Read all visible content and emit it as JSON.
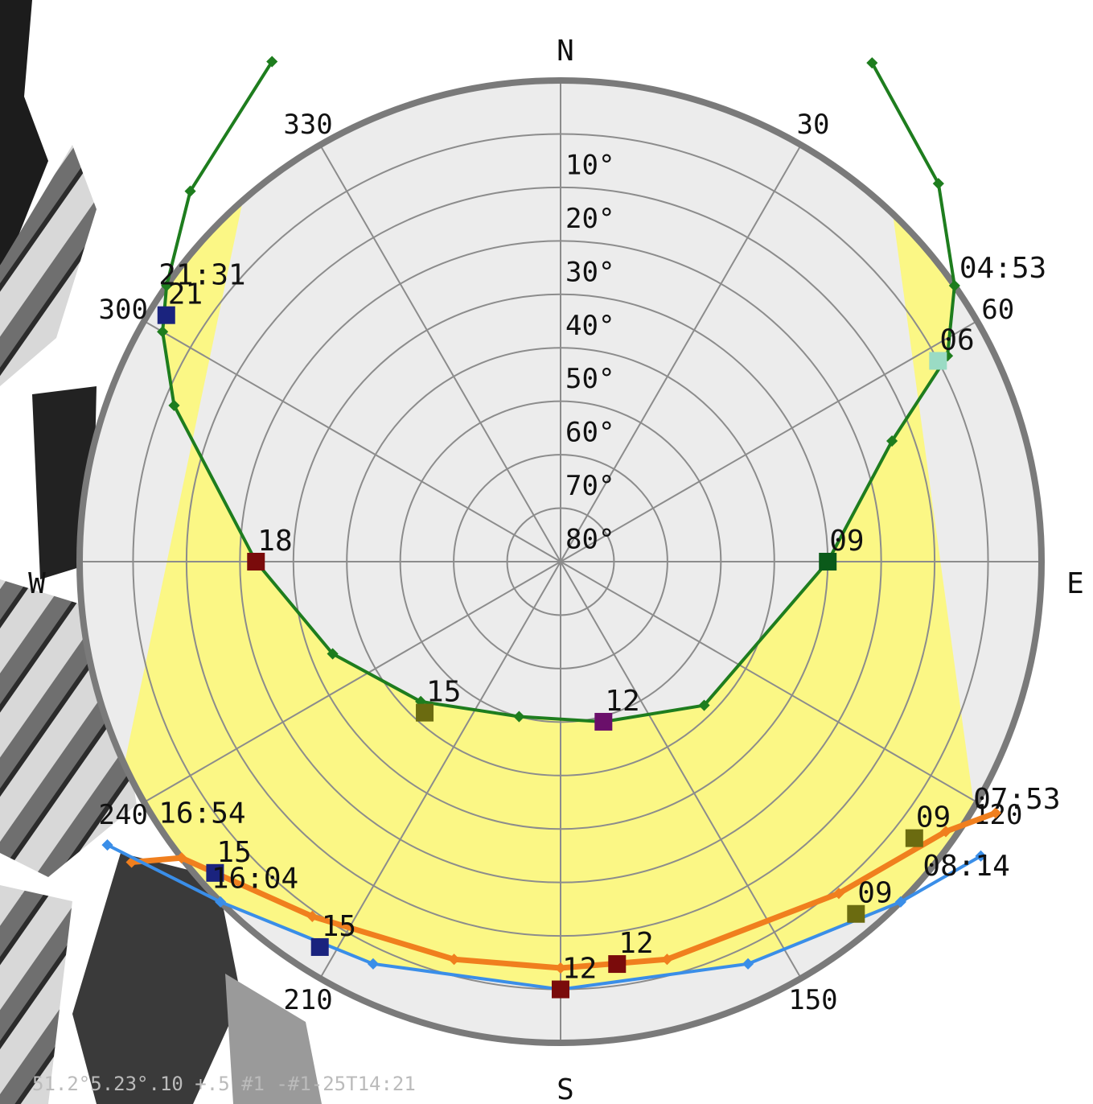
{
  "chart_data": {
    "type": "polar-sunpath",
    "cardinals": {
      "n": "N",
      "e": "E",
      "s": "S",
      "w": "W"
    },
    "elevation_rings": [
      10,
      20,
      30,
      40,
      50,
      60,
      70,
      80
    ],
    "elevation_labels": [
      "10°",
      "20°",
      "30°",
      "40°",
      "50°",
      "60°",
      "70°",
      "80°"
    ],
    "azimuth_labels": [
      {
        "az": 30,
        "text": "30"
      },
      {
        "az": 60,
        "text": "60"
      },
      {
        "az": 120,
        "text": "120"
      },
      {
        "az": 150,
        "text": "150"
      },
      {
        "az": 210,
        "text": "210"
      },
      {
        "az": 240,
        "text": "240"
      },
      {
        "az": 300,
        "text": "300"
      },
      {
        "az": 330,
        "text": "330"
      }
    ],
    "colors": {
      "plot_background": "#ececec",
      "daylight_band": "#fbf785",
      "grid": "#8c8c8c",
      "rim": "#7a7a7a",
      "summer_path": "#1e7d1e",
      "orange_path": "#f07f1e",
      "blue_path": "#3a8ee8"
    },
    "series": [
      {
        "color": "#1e7d1e",
        "points": [
          {
            "az": 330,
            "alt": -18
          },
          {
            "az": 315,
            "alt": -8
          },
          {
            "az": 305,
            "alt": 0
          },
          {
            "az": 300,
            "alt": 4
          },
          {
            "az": 292,
            "alt": 12
          },
          {
            "az": 270,
            "alt": 33
          },
          {
            "az": 248,
            "alt": 44
          },
          {
            "az": 225,
            "alt": 53
          },
          {
            "az": 195,
            "alt": 60
          },
          {
            "az": 165,
            "alt": 59
          },
          {
            "az": 135,
            "alt": 52
          },
          {
            "az": 90,
            "alt": 40
          },
          {
            "az": 70,
            "alt": 24
          },
          {
            "az": 62,
            "alt": 8
          },
          {
            "az": 55,
            "alt": 0
          },
          {
            "az": 45,
            "alt": -10
          },
          {
            "az": 32,
            "alt": -20
          }
        ],
        "hour_markers": [
          {
            "az": 302,
            "alt": 3,
            "label": "21"
          },
          {
            "az": 270,
            "alt": 33,
            "label": "18"
          },
          {
            "az": 222,
            "alt": 52,
            "label": "15"
          },
          {
            "az": 165,
            "alt": 59,
            "label": "12"
          },
          {
            "az": 90,
            "alt": 40,
            "label": "09"
          },
          {
            "az": 62,
            "alt": 10,
            "label": "06"
          }
        ],
        "event_labels": [
          {
            "az": 304,
            "alt": 0,
            "label": "21:31"
          },
          {
            "az": 55,
            "alt": 0,
            "label": "04:53"
          }
        ]
      },
      {
        "color": "#f07f1e",
        "points": [
          {
            "az": 235,
            "alt": -8
          },
          {
            "az": 232,
            "alt": 0
          },
          {
            "az": 215,
            "alt": 9
          },
          {
            "az": 195,
            "alt": 13
          },
          {
            "az": 180,
            "alt": 14
          },
          {
            "az": 165,
            "alt": 13
          },
          {
            "az": 140,
            "alt": 9
          },
          {
            "az": 125,
            "alt": 2
          },
          {
            "az": 120,
            "alt": -4
          }
        ],
        "hour_markers": [
          {
            "az": 228,
            "alt": 3,
            "label": "15"
          },
          {
            "az": 172,
            "alt": 14,
            "label": "12"
          },
          {
            "az": 128,
            "alt": 6,
            "label": "09"
          }
        ],
        "event_labels": [
          {
            "az": 236,
            "alt": 0,
            "label": "16:54"
          },
          {
            "az": 122,
            "alt": 0,
            "label": "07:53"
          }
        ]
      },
      {
        "color": "#3a8ee8",
        "points": [
          {
            "az": 238,
            "alt": -10
          },
          {
            "az": 225,
            "alt": 0
          },
          {
            "az": 205,
            "alt": 7
          },
          {
            "az": 180,
            "alt": 10
          },
          {
            "az": 155,
            "alt": 7
          },
          {
            "az": 135,
            "alt": 0
          },
          {
            "az": 125,
            "alt": -6
          }
        ],
        "hour_markers": [
          {
            "az": 212,
            "alt": 5,
            "label": "15"
          },
          {
            "az": 180,
            "alt": 10,
            "label": "12"
          },
          {
            "az": 140,
            "alt": 4,
            "label": "09"
          }
        ],
        "event_labels": [
          {
            "az": 226,
            "alt": 0,
            "label": "16:04"
          },
          {
            "az": 132,
            "alt": 0,
            "label": "08:14"
          }
        ]
      }
    ],
    "footer": "51.2°5.23°.10 +.5 #1 -#1-25T14:21"
  }
}
